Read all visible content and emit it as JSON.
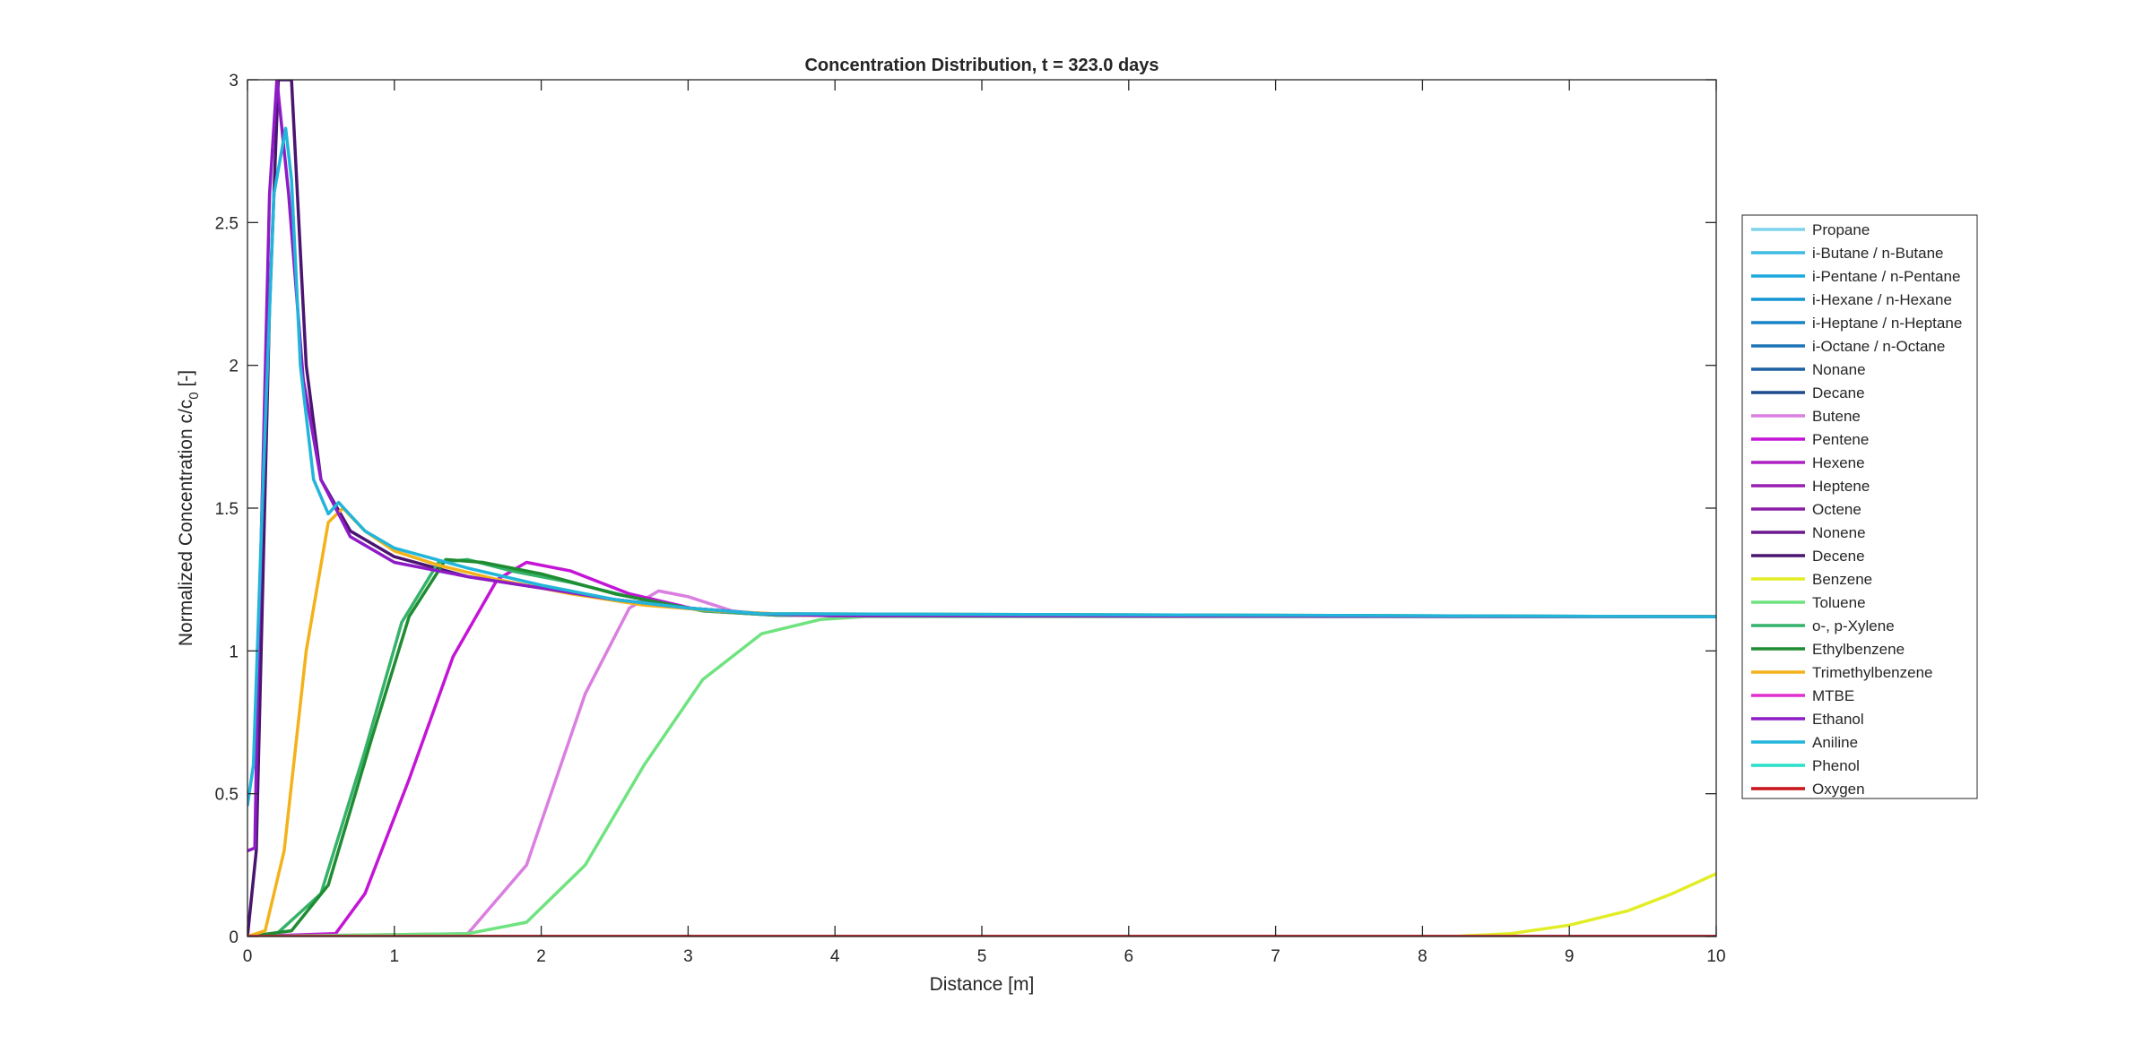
{
  "chart_data": {
    "type": "line",
    "title": "Concentration Distribution, t = 323.0 days",
    "xlabel": "Distance [m]",
    "ylabel": "Normalized Concentration c/c",
    "ylabel_subscript": "0",
    "ylabel_suffix": " [-]",
    "xlim": [
      0,
      10
    ],
    "ylim": [
      0,
      3
    ],
    "xticks": [
      0,
      1,
      2,
      3,
      4,
      5,
      6,
      7,
      8,
      9,
      10
    ],
    "yticks": [
      0,
      0.5,
      1,
      1.5,
      2,
      2.5,
      3
    ],
    "ytick_labels": [
      "0",
      "0.5",
      "1",
      "1.5",
      "2",
      "2.5",
      "3"
    ],
    "grid": false,
    "legend_position": "outside-right",
    "series": [
      {
        "name": "Propane",
        "color": "#7FD3EB",
        "points": [
          [
            0,
            0
          ],
          [
            10,
            0
          ]
        ]
      },
      {
        "name": "i-Butane / n-Butane",
        "color": "#3FBCE3",
        "points": [
          [
            0,
            0
          ],
          [
            10,
            0
          ]
        ]
      },
      {
        "name": "i-Pentane / n-Pentane",
        "color": "#1BA8DD",
        "points": [
          [
            0,
            0
          ],
          [
            10,
            0
          ]
        ]
      },
      {
        "name": "i-Hexane / n-Hexane",
        "color": "#1596D2",
        "points": [
          [
            0,
            0
          ],
          [
            10,
            0
          ]
        ]
      },
      {
        "name": "i-Heptane / n-Heptane",
        "color": "#1A84C6",
        "points": [
          [
            0,
            0
          ],
          [
            10,
            0
          ]
        ]
      },
      {
        "name": "i-Octane / n-Octane",
        "color": "#1C74B5",
        "points": [
          [
            0,
            0
          ],
          [
            10,
            0
          ]
        ]
      },
      {
        "name": "Nonane",
        "color": "#1E5FA3",
        "points": [
          [
            0,
            0
          ],
          [
            10,
            0
          ]
        ]
      },
      {
        "name": "Decane",
        "color": "#1F4C8C",
        "points": [
          [
            0,
            0
          ],
          [
            10,
            0
          ]
        ]
      },
      {
        "name": "Butene",
        "color": "#DA7FE0",
        "points": [
          [
            0,
            0
          ],
          [
            1.5,
            0.01
          ],
          [
            1.9,
            0.25
          ],
          [
            2.3,
            0.85
          ],
          [
            2.6,
            1.15
          ],
          [
            2.8,
            1.21
          ],
          [
            3.0,
            1.19
          ],
          [
            3.3,
            1.14
          ],
          [
            3.6,
            1.125
          ],
          [
            10,
            1.12
          ]
        ]
      },
      {
        "name": "Pentene",
        "color": "#C414D6",
        "points": [
          [
            0,
            0
          ],
          [
            0.6,
            0.01
          ],
          [
            0.8,
            0.15
          ],
          [
            1.1,
            0.55
          ],
          [
            1.4,
            0.98
          ],
          [
            1.7,
            1.25
          ],
          [
            1.9,
            1.31
          ],
          [
            2.2,
            1.28
          ],
          [
            2.6,
            1.2
          ],
          [
            3.1,
            1.14
          ],
          [
            3.6,
            1.125
          ],
          [
            10,
            1.12
          ]
        ]
      },
      {
        "name": "Hexene",
        "color": "#AD22C4",
        "points": [
          [
            0,
            0
          ],
          [
            10,
            0
          ]
        ]
      },
      {
        "name": "Heptene",
        "color": "#9A20B3",
        "points": [
          [
            0,
            0
          ],
          [
            10,
            0
          ]
        ]
      },
      {
        "name": "Octene",
        "color": "#8A1EA6",
        "points": [
          [
            0,
            0
          ],
          [
            10,
            0
          ]
        ]
      },
      {
        "name": "Nonene",
        "color": "#6B1A8E",
        "points": [
          [
            0,
            0
          ],
          [
            10,
            0
          ]
        ]
      },
      {
        "name": "Decene",
        "color": "#4A1570",
        "points": [
          [
            0,
            0
          ],
          [
            0.06,
            0.3
          ],
          [
            0.15,
            2.2
          ],
          [
            0.21,
            3
          ],
          [
            0.3,
            3
          ],
          [
            0.4,
            2.0
          ],
          [
            0.5,
            1.6
          ],
          [
            0.7,
            1.42
          ],
          [
            1.0,
            1.33
          ],
          [
            1.5,
            1.26
          ],
          [
            2.0,
            1.22
          ],
          [
            2.5,
            1.18
          ],
          [
            3.0,
            1.15
          ],
          [
            3.5,
            1.13
          ],
          [
            4.0,
            1.123
          ],
          [
            10,
            1.12
          ]
        ]
      },
      {
        "name": "Benzene",
        "color": "#E2ED25",
        "points": [
          [
            0,
            0
          ],
          [
            8.2,
            0
          ],
          [
            8.6,
            0.01
          ],
          [
            9.0,
            0.04
          ],
          [
            9.4,
            0.09
          ],
          [
            9.7,
            0.15
          ],
          [
            10,
            0.22
          ]
        ]
      },
      {
        "name": "Toluene",
        "color": "#6FE37F",
        "points": [
          [
            0,
            0
          ],
          [
            1.5,
            0.01
          ],
          [
            1.9,
            0.05
          ],
          [
            2.3,
            0.25
          ],
          [
            2.7,
            0.6
          ],
          [
            3.1,
            0.9
          ],
          [
            3.5,
            1.06
          ],
          [
            3.9,
            1.11
          ],
          [
            4.2,
            1.12
          ],
          [
            10,
            1.12
          ]
        ]
      },
      {
        "name": "o-, p-Xylene",
        "color": "#35B26A",
        "points": [
          [
            0,
            0
          ],
          [
            0.2,
            0.01
          ],
          [
            0.5,
            0.15
          ],
          [
            0.8,
            0.65
          ],
          [
            1.05,
            1.1
          ],
          [
            1.3,
            1.31
          ],
          [
            1.5,
            1.32
          ],
          [
            1.8,
            1.28
          ],
          [
            2.2,
            1.24
          ],
          [
            2.6,
            1.19
          ],
          [
            3.1,
            1.14
          ],
          [
            3.6,
            1.125
          ],
          [
            10,
            1.12
          ]
        ]
      },
      {
        "name": "Ethylbenzene",
        "color": "#1F8C32",
        "points": [
          [
            0,
            0
          ],
          [
            0.3,
            0.02
          ],
          [
            0.55,
            0.18
          ],
          [
            0.85,
            0.7
          ],
          [
            1.1,
            1.12
          ],
          [
            1.35,
            1.32
          ],
          [
            1.6,
            1.31
          ],
          [
            2.0,
            1.27
          ],
          [
            2.5,
            1.2
          ],
          [
            3.0,
            1.15
          ],
          [
            3.5,
            1.13
          ],
          [
            10,
            1.12
          ]
        ]
      },
      {
        "name": "Trimethylbenzene",
        "color": "#F4B21A",
        "points": [
          [
            0,
            0
          ],
          [
            0.12,
            0.02
          ],
          [
            0.25,
            0.3
          ],
          [
            0.4,
            1.0
          ],
          [
            0.55,
            1.45
          ],
          [
            0.65,
            1.5
          ],
          [
            0.8,
            1.42
          ],
          [
            1.0,
            1.35
          ],
          [
            1.3,
            1.3
          ],
          [
            1.7,
            1.25
          ],
          [
            2.2,
            1.2
          ],
          [
            2.7,
            1.16
          ],
          [
            3.2,
            1.14
          ],
          [
            3.8,
            1.125
          ],
          [
            10,
            1.12
          ]
        ]
      },
      {
        "name": "MTBE",
        "color": "#E030D0",
        "points": [
          [
            0,
            0
          ],
          [
            10,
            0
          ]
        ]
      },
      {
        "name": "Ethanol",
        "color": "#8E1CC6",
        "points": [
          [
            0,
            0.3
          ],
          [
            0.05,
            0.31
          ],
          [
            0.07,
            0.9
          ],
          [
            0.15,
            2.6
          ],
          [
            0.2,
            3
          ],
          [
            0.28,
            2.6
          ],
          [
            0.38,
            1.95
          ],
          [
            0.5,
            1.6
          ],
          [
            0.7,
            1.4
          ],
          [
            1.0,
            1.31
          ],
          [
            1.5,
            1.26
          ],
          [
            2.0,
            1.22
          ],
          [
            2.5,
            1.18
          ],
          [
            3.0,
            1.15
          ],
          [
            3.5,
            1.13
          ],
          [
            4.0,
            1.123
          ],
          [
            10,
            1.12
          ]
        ]
      },
      {
        "name": "Aniline",
        "color": "#22B5DA",
        "points": [
          [
            0,
            0.46
          ],
          [
            0.04,
            0.6
          ],
          [
            0.1,
            1.5
          ],
          [
            0.18,
            2.6
          ],
          [
            0.26,
            2.83
          ],
          [
            0.3,
            2.65
          ],
          [
            0.36,
            2.0
          ],
          [
            0.45,
            1.6
          ],
          [
            0.55,
            1.48
          ],
          [
            0.62,
            1.52
          ],
          [
            0.8,
            1.42
          ],
          [
            1.0,
            1.36
          ],
          [
            1.5,
            1.29
          ],
          [
            2.0,
            1.23
          ],
          [
            2.5,
            1.18
          ],
          [
            3.0,
            1.15
          ],
          [
            3.5,
            1.13
          ],
          [
            10,
            1.12
          ]
        ]
      },
      {
        "name": "Phenol",
        "color": "#2ADFC8",
        "points": [
          [
            0,
            0
          ],
          [
            10,
            0
          ]
        ]
      },
      {
        "name": "Oxygen",
        "color": "#C8141B",
        "points": [
          [
            0,
            0
          ],
          [
            10,
            0
          ]
        ]
      }
    ]
  }
}
